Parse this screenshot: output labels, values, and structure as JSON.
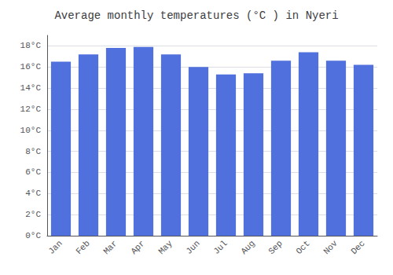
{
  "chart_data": {
    "type": "bar",
    "title": "Average monthly temperatures (°C ) in Nyeri",
    "categories": [
      "Jan",
      "Feb",
      "Mar",
      "Apr",
      "May",
      "Jun",
      "Jul",
      "Aug",
      "Sep",
      "Oct",
      "Nov",
      "Dec"
    ],
    "values": [
      16.5,
      17.2,
      17.8,
      17.9,
      17.2,
      16.0,
      15.3,
      15.4,
      16.6,
      17.4,
      16.6,
      16.2
    ],
    "ylim": [
      0,
      19
    ],
    "yticks": [
      {
        "value": 0,
        "label": "0°C"
      },
      {
        "value": 2,
        "label": "2°C"
      },
      {
        "value": 4,
        "label": "4°C"
      },
      {
        "value": 6,
        "label": "6°C"
      },
      {
        "value": 8,
        "label": "8°C"
      },
      {
        "value": 10,
        "label": "10°C"
      },
      {
        "value": 12,
        "label": "12°C"
      },
      {
        "value": 14,
        "label": "14°C"
      },
      {
        "value": 16,
        "label": "16°C"
      },
      {
        "value": 18,
        "label": "18°C"
      }
    ],
    "grid": true
  }
}
